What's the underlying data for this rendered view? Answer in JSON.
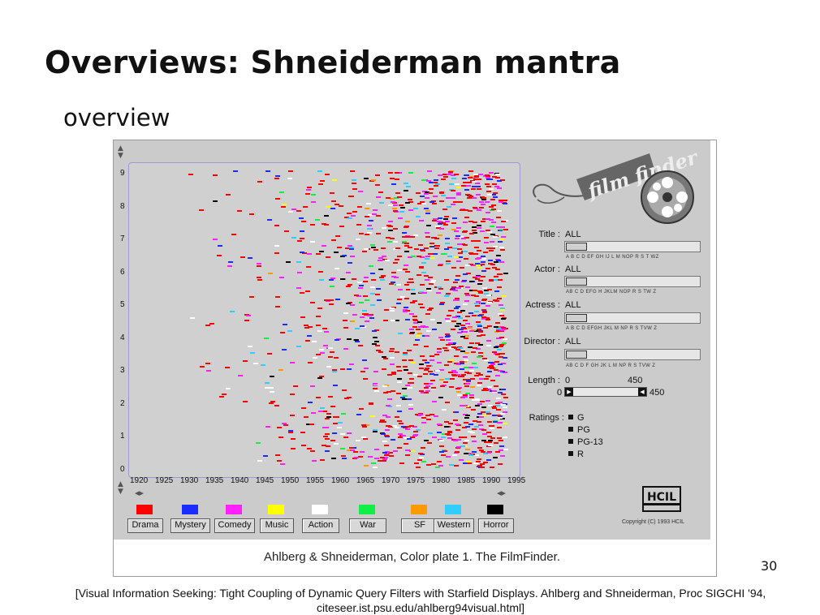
{
  "slide": {
    "title": "Overviews: Shneiderman mantra",
    "subtitle": "overview",
    "page_number": "30",
    "reference": "[Visual Information Seeking: Tight Coupling of Dynamic Query Filters with Starfield Displays. Ahlberg and Shneiderman, Proc SIGCHI '94, citeseer.ist.psu.edu/ahlberg94visual.html]"
  },
  "screenshot": {
    "caption": "Ahlberg & Shneiderman, Color plate 1. The FilmFinder.",
    "starfield": {
      "y_ticks": [
        "0",
        "1",
        "2",
        "3",
        "4",
        "5",
        "6",
        "7",
        "8",
        "9"
      ],
      "x_ticks": [
        "1920",
        "1925",
        "1930",
        "1935",
        "1940",
        "1945",
        "1950",
        "1955",
        "1960",
        "1965",
        "1970",
        "1975",
        "1980",
        "1985",
        "1990",
        "1995"
      ],
      "x_range": [
        1920,
        1995
      ],
      "y_range": [
        0,
        9
      ]
    },
    "genres": [
      {
        "label": "Drama",
        "color": "#ff0000"
      },
      {
        "label": "Mystery",
        "color": "#1a2cff"
      },
      {
        "label": "Comedy",
        "color": "#ff20ff"
      },
      {
        "label": "Music",
        "color": "#ffff00"
      },
      {
        "label": "Action",
        "color": "#ffffff"
      },
      {
        "label": "War",
        "color": "#11ee44"
      },
      {
        "label": "SF",
        "color": "#ff9900"
      },
      {
        "label": "Western",
        "color": "#33ccff"
      },
      {
        "label": "Horror",
        "color": "#000000"
      }
    ],
    "filters": {
      "title": {
        "label": "Title :",
        "value": "ALL",
        "alphabet": "A B C D EF GH IJ L M NOP R S T WZ"
      },
      "actor": {
        "label": "Actor :",
        "value": "ALL",
        "alphabet": "AB C D EFG H JKLM NOP R S TW Z"
      },
      "actress": {
        "label": "Actress :",
        "value": "ALL",
        "alphabet": "A B C D EFGH JKL M NP R S TVW Z"
      },
      "director": {
        "label": "Director :",
        "value": "ALL",
        "alphabet": "AB C D F GH JK L M NP R S TVW Z"
      },
      "length": {
        "label": "Length :",
        "min": "0",
        "max": "450",
        "low": "0",
        "high": "450"
      }
    },
    "ratings": {
      "label": "Ratings :",
      "options": [
        "G",
        "PG",
        "PG-13",
        "R"
      ]
    },
    "logo_text": "film finder",
    "hcil_text": "HCIL",
    "copyright": "Copyright (C) 1993 HCIL"
  }
}
